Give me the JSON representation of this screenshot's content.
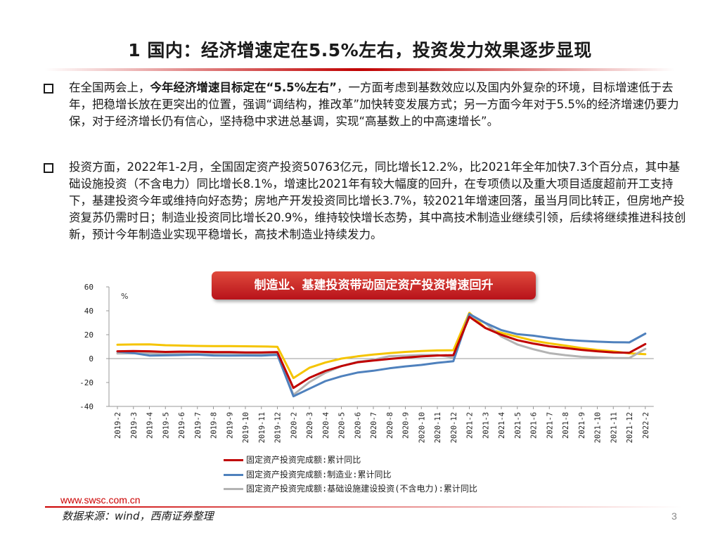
{
  "title": "1 国内：经济增速定在5.5%左右，投资发力效果逐步显现",
  "bullets": {
    "b1_pre": "在全国两会上，",
    "b1_bold": "今年经济增速目标定在“5.5%左右”",
    "b1_post": "，一方面考虑到基数效应以及国内外复杂的环境，目标增速低于去年，把稳增长放在更突出的位置，强调“调结构，推改革”加快转变发展方式；另一方面今年对于5.5%的经济增速仍要力保，对于经济增长仍有信心，坚持稳中求进总基调，实现“高基数上的中高速增长”。",
    "b2": "投资方面，2022年1-2月，全国固定资产投资50763亿元，同比增长12.2%，比2021年全年加快7.3个百分点，其中基础设施投资（不含电力）同比增长8.1%，增速比2021年有较大幅度的回升，在专项债以及重大项目适度超前开工支持下，基建投资今年或维持向好态势；房地产开发投资同比增长3.7%，较2021年增速回落，虽当月同比转正，但房地产投资复苏仍需时日；制造业投资同比增长20.9%，维持较快增长态势，其中高技术制造业继续引领，后续将继续推进科技创新，预计今年制造业实现平稳增长，高技术制造业持续发力。"
  },
  "chart_banner": "制造业、基建投资带动固定资产投资增速回升",
  "chart_data": {
    "type": "line",
    "ylabel": "%",
    "ylim": [
      -40,
      60
    ],
    "yticks": [
      60,
      40,
      20,
      0,
      -20,
      -40
    ],
    "grid": false,
    "legend_position": "bottom",
    "categories": [
      "2019-2",
      "2019-3",
      "2019-4",
      "2019-5",
      "2019-6",
      "2019-7",
      "2019-8",
      "2019-9",
      "2019-10",
      "2019-11",
      "2019-12",
      "2020-2",
      "2020-3",
      "2020-4",
      "2020-5",
      "2020-6",
      "2020-7",
      "2020-8",
      "2020-9",
      "2020-10",
      "2020-11",
      "2020-12",
      "2021-2",
      "2021-3",
      "2021-4",
      "2021-5",
      "2021-6",
      "2021-7",
      "2021-8",
      "2021-9",
      "2021-10",
      "2021-11",
      "2021-12",
      "2022-2"
    ],
    "series": [
      {
        "name": "固定资产投资完成额:累计同比",
        "color": "#c00000",
        "values": [
          6.1,
          6.3,
          6.1,
          5.6,
          5.8,
          5.7,
          5.5,
          5.4,
          5.2,
          5.2,
          5.4,
          -24.5,
          -16.1,
          -10.3,
          -6.3,
          -3.1,
          -1.6,
          -0.3,
          0.8,
          1.8,
          2.6,
          2.9,
          35.0,
          25.6,
          19.9,
          15.4,
          12.6,
          10.3,
          8.9,
          7.3,
          6.1,
          5.2,
          4.9,
          12.2
        ]
      },
      {
        "name": "固定资产投资完成额:制造业:累计同比",
        "color": "#4f81bd",
        "values": [
          5.9,
          4.6,
          2.5,
          2.7,
          3.0,
          3.3,
          2.6,
          2.5,
          2.6,
          2.5,
          3.1,
          -31.5,
          -25.2,
          -18.8,
          -14.8,
          -11.7,
          -10.2,
          -8.1,
          -6.5,
          -5.3,
          -3.5,
          -2.2,
          37.3,
          29.8,
          23.8,
          20.4,
          19.2,
          17.3,
          15.7,
          14.8,
          14.2,
          13.7,
          13.5,
          20.9
        ]
      },
      {
        "name": "固定资产投资完成额:基础设施建设投资(不含电力):累计同比",
        "color": "#b3b3b3",
        "values": [
          4.3,
          4.4,
          4.4,
          4.0,
          4.1,
          3.8,
          4.2,
          4.5,
          4.2,
          4.0,
          3.8,
          -30.3,
          -19.7,
          -11.8,
          -6.3,
          -2.7,
          -1.0,
          2.0,
          2.4,
          3.0,
          3.0,
          0.9,
          36.6,
          29.7,
          18.4,
          11.8,
          7.8,
          4.6,
          2.9,
          1.5,
          1.0,
          0.5,
          0.4,
          8.1
        ]
      },
      {
        "name": "",
        "color": "#f5c400",
        "values": [
          11.6,
          11.8,
          11.9,
          11.2,
          10.9,
          10.6,
          10.5,
          10.5,
          10.3,
          10.2,
          9.9,
          -16.3,
          -7.7,
          -3.3,
          0.0,
          1.9,
          3.4,
          4.6,
          5.6,
          6.3,
          6.8,
          7.0,
          38.3,
          25.6,
          21.6,
          18.3,
          15.0,
          12.7,
          10.9,
          8.8,
          7.2,
          6.0,
          4.4,
          3.7
        ]
      }
    ]
  },
  "legend_labels": [
    "固定资产投资完成额:累计同比",
    "固定资产投资完成额:制造业:累计同比",
    "固定资产投资完成额:基础设施建设投资(不含电力):累计同比"
  ],
  "footer": {
    "url": "www.swsc.com.cn",
    "source": "数据来源：wind，西南证券整理",
    "page": "3"
  },
  "colors": {
    "accent": "#c00000",
    "banner": "#c8251f"
  }
}
